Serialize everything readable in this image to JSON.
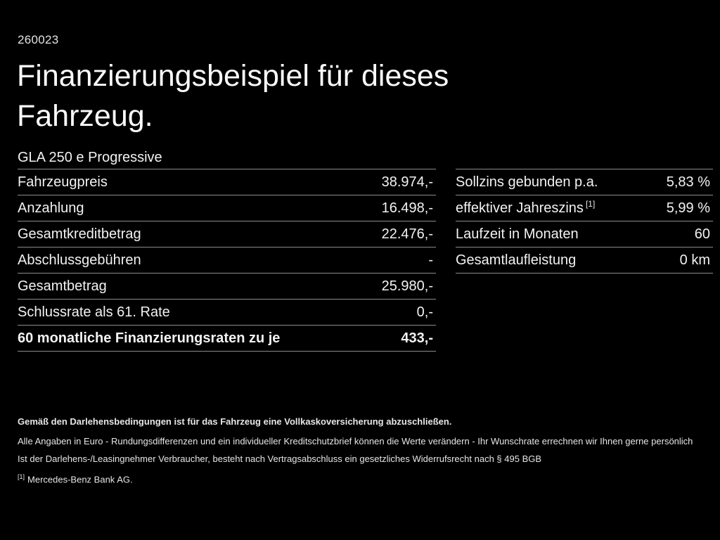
{
  "page": {
    "doc_number": "260023",
    "title": "Finanzierungsbeispiel für dieses Fahrzeug.",
    "model": "GLA 250 e Progressive"
  },
  "colors": {
    "background": "#000000",
    "text": "#f2f2f2",
    "divider": "#8c8c8c"
  },
  "left_table": {
    "rows": [
      {
        "label": "Fahrzeugpreis",
        "value": "38.974,-"
      },
      {
        "label": "Anzahlung",
        "value": "16.498,-"
      },
      {
        "label": "Gesamtkreditbetrag",
        "value": "22.476,-"
      },
      {
        "label": "Abschlussgebühren",
        "value": "-"
      },
      {
        "label": "Gesamtbetrag",
        "value": "25.980,-"
      },
      {
        "label": "Schlussrate als 61. Rate",
        "value": "0,-"
      },
      {
        "label": "60 monatliche Finanzierungsraten zu je",
        "value": "433,-"
      }
    ]
  },
  "right_table": {
    "rows": [
      {
        "label": "Sollzins gebunden p.a.",
        "sup": "",
        "value": "5,83 %"
      },
      {
        "label": "effektiver Jahreszins",
        "sup": "[1]",
        "value": "5,99 %"
      },
      {
        "label": "Laufzeit in Monaten",
        "sup": "",
        "value": "60"
      },
      {
        "label": "Gesamtlaufleistung",
        "sup": "",
        "value": "0 km"
      }
    ]
  },
  "footer": {
    "line1": "Gemäß den Darlehensbedingungen ist für das Fahrzeug eine Vollkaskoversicherung abzuschließen.",
    "line2": "Alle Angaben in Euro - Rundungsdifferenzen und ein individueller Kreditschutzbrief können die Werte verändern - Ihr Wunschrate errechnen wir Ihnen gerne persönlich",
    "line3": "Ist der Darlehens-/Leasingnehmer Verbraucher, besteht nach Vertragsabschluss ein gesetzliches Widerrufsrecht nach § 495 BGB",
    "footnote_marker": "[1]",
    "footnote_text": "Mercedes-Benz Bank AG."
  }
}
